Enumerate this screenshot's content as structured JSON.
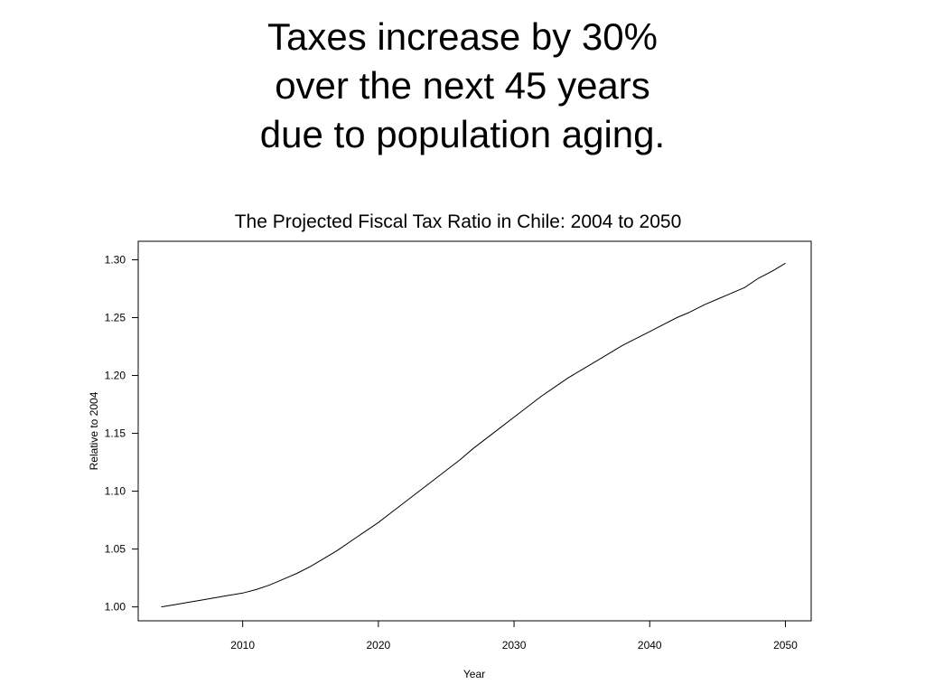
{
  "slide": {
    "headline_lines": [
      "Taxes increase by 30%",
      "over the next 45 years",
      "due to population aging."
    ]
  },
  "chart_data": {
    "type": "line",
    "title": "The Projected Fiscal Tax Ratio in Chile: 2004 to 2050",
    "xlabel": "Year",
    "ylabel": "Relative to 2004",
    "xlim": [
      2002.3,
      2051.9
    ],
    "ylim": [
      0.988,
      1.316
    ],
    "x_ticks": [
      2010,
      2020,
      2030,
      2040,
      2050
    ],
    "x_tick_labels": [
      "2010",
      "2020",
      "2030",
      "2040",
      "2050"
    ],
    "y_ticks": [
      1.0,
      1.05,
      1.1,
      1.15,
      1.2,
      1.25,
      1.3
    ],
    "y_tick_labels": [
      "1.00",
      "1.05",
      "1.10",
      "1.15",
      "1.20",
      "1.25",
      "1.30"
    ],
    "grid": false,
    "line_color": "#000000",
    "series": [
      {
        "x": [
          2004,
          2005,
          2006,
          2007,
          2008,
          2009,
          2010,
          2011,
          2012,
          2013,
          2014,
          2015,
          2016,
          2017,
          2018,
          2019,
          2020,
          2021,
          2022,
          2023,
          2024,
          2025,
          2026,
          2027,
          2028,
          2029,
          2030,
          2031,
          2032,
          2033,
          2034,
          2035,
          2036,
          2037,
          2038,
          2039,
          2040,
          2041,
          2042,
          2043,
          2044,
          2045,
          2046,
          2047,
          2048,
          2049,
          2050
        ],
        "y": [
          1.0,
          1.002,
          1.004,
          1.006,
          1.008,
          1.01,
          1.012,
          1.015,
          1.019,
          1.024,
          1.029,
          1.035,
          1.042,
          1.049,
          1.057,
          1.065,
          1.073,
          1.082,
          1.091,
          1.1,
          1.109,
          1.118,
          1.127,
          1.137,
          1.146,
          1.155,
          1.164,
          1.173,
          1.182,
          1.19,
          1.198,
          1.205,
          1.212,
          1.219,
          1.226,
          1.232,
          1.238,
          1.244,
          1.25,
          1.255,
          1.261,
          1.266,
          1.271,
          1.276,
          1.284,
          1.29,
          1.297
        ]
      }
    ]
  }
}
